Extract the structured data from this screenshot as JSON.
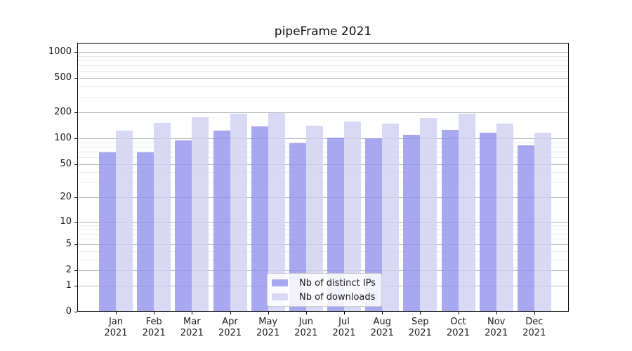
{
  "figure": {
    "background": "#ffffff"
  },
  "chart_data": {
    "type": "bar",
    "title": "pipeFrame 2021",
    "categories": [
      "Jan",
      "Feb",
      "Mar",
      "Apr",
      "May",
      "Jun",
      "Jul",
      "Aug",
      "Sep",
      "Oct",
      "Nov",
      "Dec"
    ],
    "xtick_second_line": "2021",
    "series": [
      {
        "name": "Nb of distinct IPs",
        "color": "rgba(146,146,238,0.8)",
        "values": [
          68,
          68,
          95,
          123,
          137,
          88,
          101,
          100,
          110,
          126,
          117,
          83
        ]
      },
      {
        "name": "Nb of downloads",
        "color": "rgba(207,207,243,0.8)",
        "values": [
          123,
          150,
          176,
          194,
          197,
          140,
          157,
          148,
          172,
          192,
          149,
          117
        ]
      }
    ],
    "yscale": "log1p-symlog",
    "ylim": [
      0,
      1275
    ],
    "yticks": [
      0,
      1,
      2,
      5,
      10,
      20,
      50,
      100,
      200,
      500,
      1000
    ],
    "minor_yticks": [
      3,
      4,
      6,
      7,
      8,
      9,
      30,
      40,
      60,
      70,
      80,
      90,
      300,
      400,
      600,
      700,
      800,
      900
    ],
    "grid": true,
    "legend_position": "lower center",
    "colors": {
      "major_grid": "#b4b4b4",
      "minor_grid": "#e9e9e9",
      "spine": "#000000",
      "text": "#1a1a1a"
    }
  }
}
